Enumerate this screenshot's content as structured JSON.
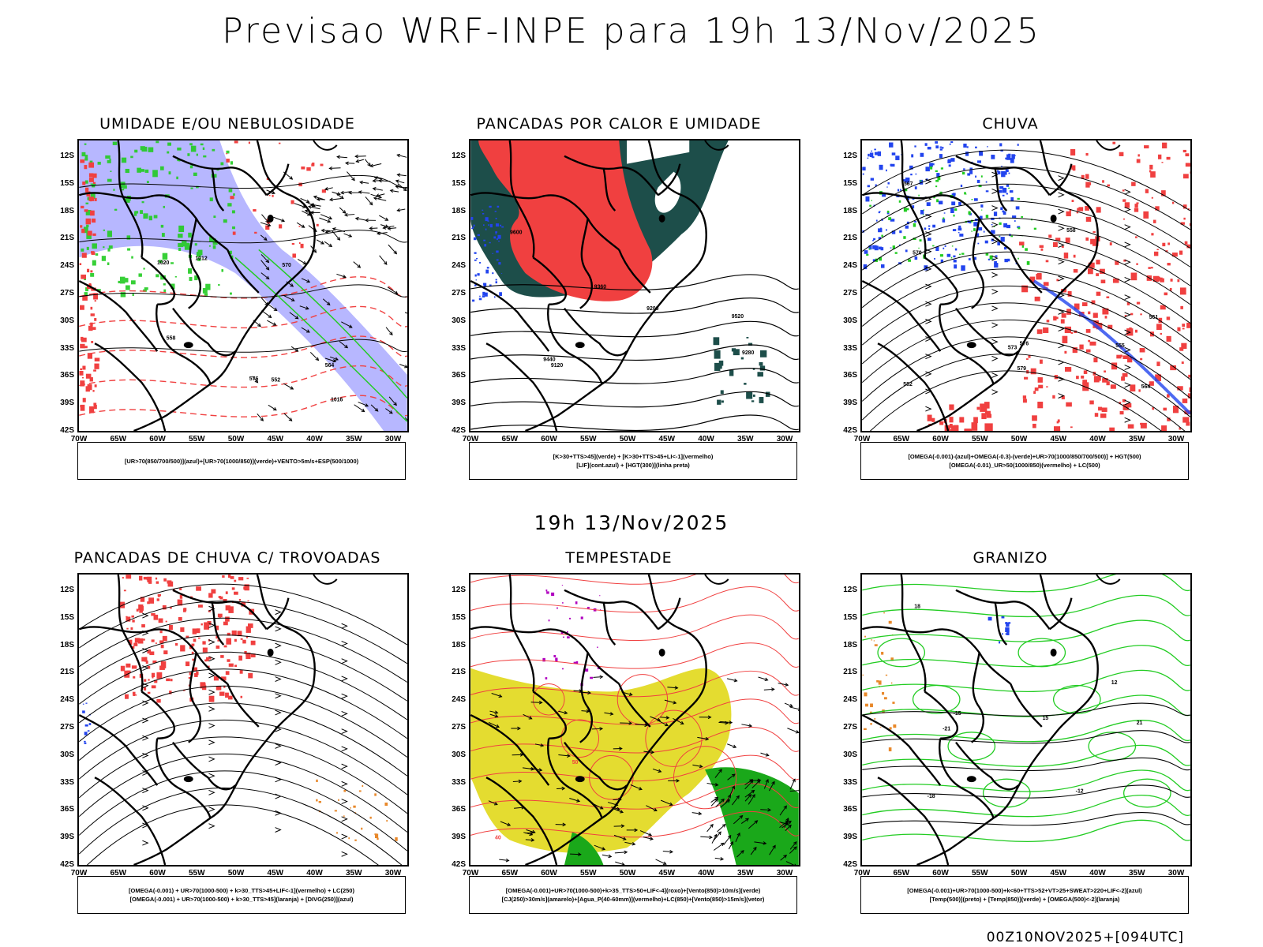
{
  "main_title": "Previsao WRF-INPE  para 19h 13/Nov/2025",
  "mid_title": "19h 13/Nov/2025",
  "footer": "00Z10NOV2025+[094UTC]",
  "lat_labels": [
    "12S",
    "15S",
    "18S",
    "21S",
    "24S",
    "27S",
    "30S",
    "33S",
    "36S",
    "39S",
    "42S"
  ],
  "lon_labels": [
    "70W",
    "65W",
    "60W",
    "55W",
    "50W",
    "45W",
    "40W",
    "35W",
    "30W"
  ],
  "colors": {
    "red": "#f04040",
    "green": "#22cc22",
    "blue": "#2244ee",
    "lavender": "#aaaaff",
    "darkteal": "#1d4e4a",
    "yellow": "#e4dc30",
    "orange": "#e8882a",
    "purple": "#b000c0"
  },
  "panels": [
    {
      "title": "UMIDADE E/OU NEBULOSIDADE",
      "legend": [
        "[UR>70(850/700/500)](azul)+[UR>70(1000/850)](verde)+VENTO>5m/s+ESP(500/1000)"
      ],
      "contour_labels": [
        "1012",
        "1016",
        "1020",
        "552",
        "558",
        "564",
        "570",
        "576"
      ]
    },
    {
      "title": "PANCADAS POR CALOR E UMIDADE",
      "legend": [
        "[K>30+TTS>45](verde) + [K>30+TTS>45+LI<-1](vermelho)",
        "[LIF](cont.azul) + [HGT(300)](linha preta)"
      ],
      "contour_labels": [
        "9600",
        "9520",
        "9440",
        "9360",
        "9280",
        "9200",
        "9120"
      ]
    },
    {
      "title": "CHUVA",
      "legend": [
        "[OMEGA(-0.001)-(azul)+OMEGA(-0.3)-(verde)+UR>70(1000/850/700/500)] + HGT(500)",
        "[OMEGA(-0.01)_UR>50(1000/850)(vermelho) + LC(500)"
      ],
      "contour_labels": [
        "582",
        "579",
        "576",
        "573",
        "570",
        "567",
        "564",
        "561",
        "558",
        "555"
      ]
    },
    {
      "title": "PANCADAS DE CHUVA C/ TROVOADAS",
      "legend": [
        "[OMEGA(-0.001) + UR>70(1000-500) + k>30_TTS>45+LIF<-1](vermelho) + LC(250)",
        "[OMEGA(-0.001) + UR>70(1000-500) + k>30_TTS>45](laranja) + [DIVG(250)](azul)"
      ],
      "contour_labels": []
    },
    {
      "title": "TEMPESTADE",
      "legend": [
        "[OMEGA(-0.001)+UR>70(1000-500)+k>35_TTS>50+LIF<-4](roxo)+[Vento(850)>10m/s](verde)",
        "[CJ(250)>30m/s](amarelo)+[Agua_P(40-60mm)](vermelho)+LC(850)+[Vento(850)>15m/s](vetor)"
      ],
      "contour_labels": [
        "40",
        "50"
      ]
    },
    {
      "title": "GRANIZO",
      "legend": [
        "[OMEGA(-0.001)+UR>70(1000-500)+k<60+TTS>52+VT>25+SWEAT>220+LIF<-2](azul)",
        "[Temp(500)](preto) + [Temp(850)](verde) + [OMEGA(500)<-2](laranja)"
      ],
      "contour_labels": [
        "-15",
        "-18",
        "-21",
        "-12",
        "12",
        "15",
        "18",
        "21"
      ]
    }
  ]
}
